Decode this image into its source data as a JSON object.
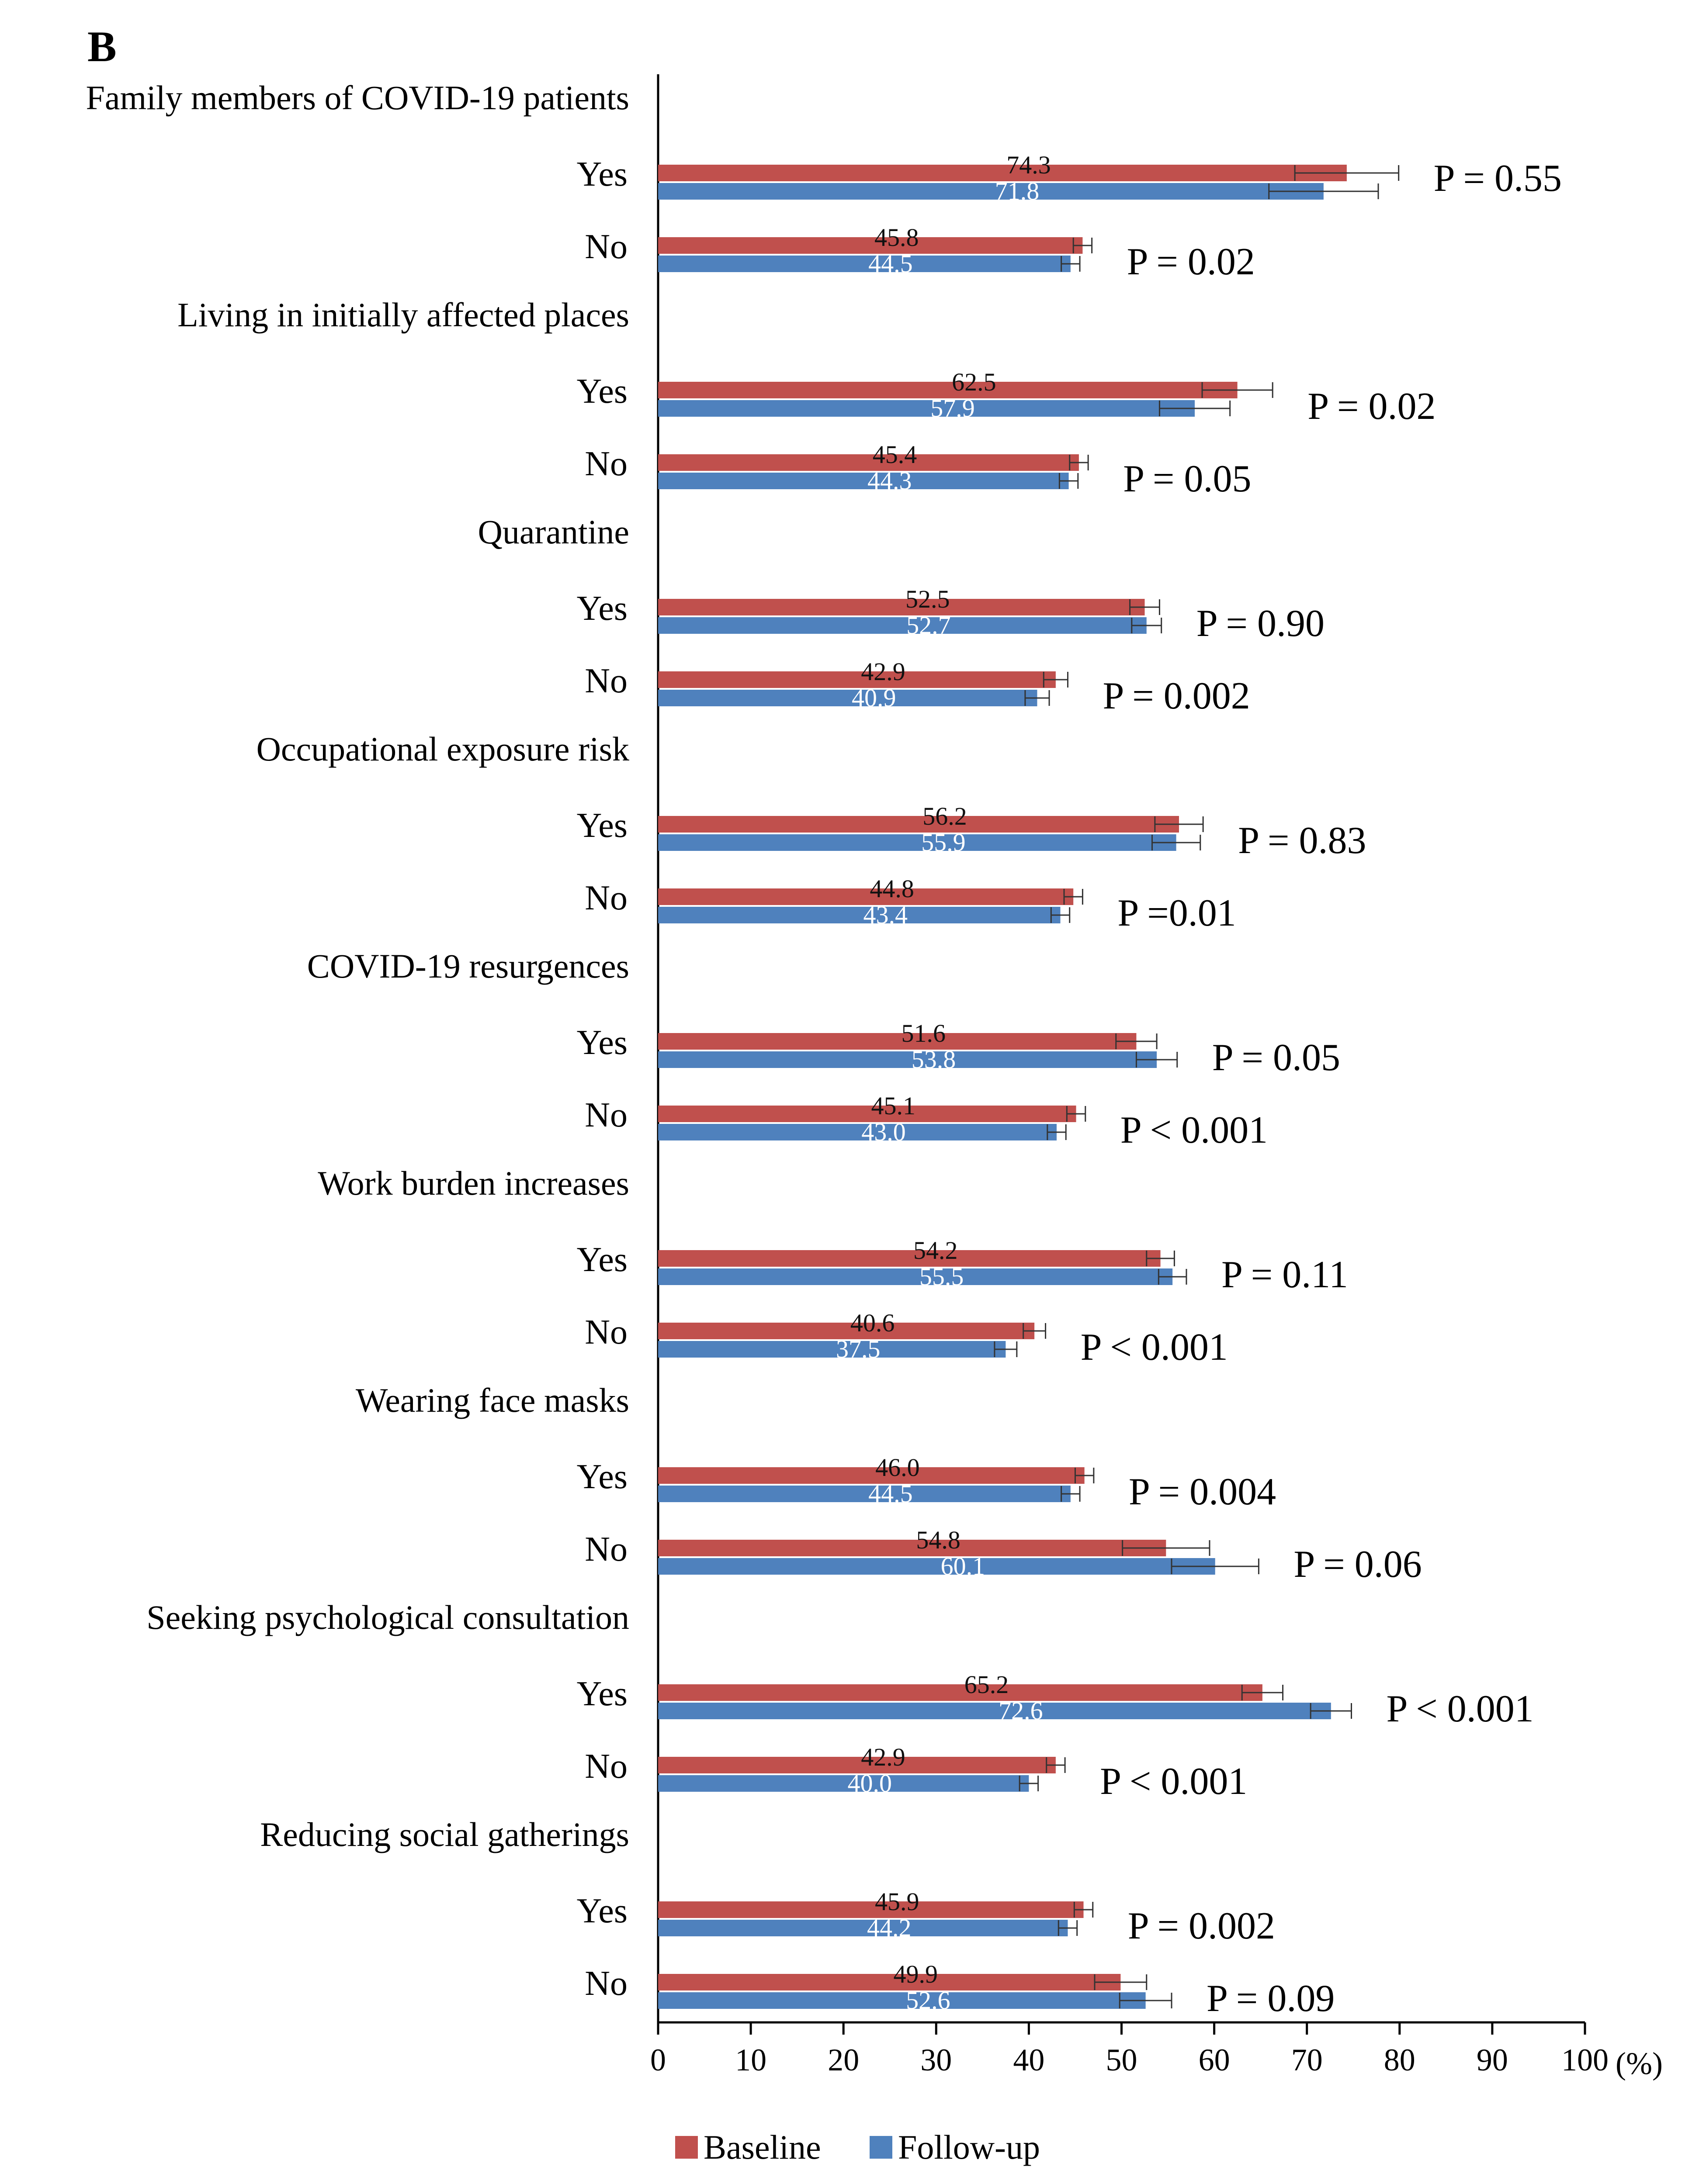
{
  "chart_data": {
    "type": "bar",
    "orientation": "horizontal",
    "panel_label": "B",
    "series": [
      {
        "name": "Baseline",
        "color": "#c0504d"
      },
      {
        "name": "Follow-up",
        "color": "#4f81bd"
      }
    ],
    "x_axis": {
      "min": 0,
      "max": 100,
      "ticks": [
        "0",
        "10",
        "20",
        "30",
        "40",
        "50",
        "60",
        "70",
        "80",
        "90",
        "100"
      ],
      "unit_label": "(%)"
    },
    "legend": {
      "position": "bottom",
      "items": [
        "Baseline",
        "Follow-up"
      ]
    },
    "groups": [
      {
        "title": "Family members of COVID-19 patients",
        "categories": [
          {
            "label": "Yes",
            "baseline": 74.3,
            "baseline_label": "74.3",
            "baseline_err": 5.6,
            "followup": 71.8,
            "followup_label": "71.8",
            "followup_err": 5.9,
            "p": "P = 0.55",
            "p_offset": 2
          },
          {
            "label": "No",
            "baseline": 45.8,
            "baseline_label": "45.8",
            "baseline_err": 1.0,
            "followup": 44.5,
            "followup_label": "44.5",
            "followup_err": 1.0,
            "p": "P = 0.02",
            "p_offset": 1
          }
        ]
      },
      {
        "title": "Living in initially affected places",
        "categories": [
          {
            "label": "Yes",
            "baseline": 62.5,
            "baseline_label": "62.5",
            "baseline_err": 3.8,
            "followup": 57.9,
            "followup_label": "57.9",
            "followup_err": 3.8,
            "p": "P = 0.02",
            "p_offset": 1
          },
          {
            "label": "No",
            "baseline": 45.4,
            "baseline_label": "45.4",
            "baseline_err": 1.0,
            "followup": 44.3,
            "followup_label": "44.3",
            "followup_err": 1.0,
            "p": "P = 0.05",
            "p_offset": 1
          }
        ]
      },
      {
        "title": "Quarantine",
        "categories": [
          {
            "label": "Yes",
            "baseline": 52.5,
            "baseline_label": "52.5",
            "baseline_err": 1.6,
            "followup": 52.7,
            "followup_label": "52.7",
            "followup_err": 1.6,
            "p": "P = 0.90",
            "p_offset": 1
          },
          {
            "label": "No",
            "baseline": 42.9,
            "baseline_label": "42.9",
            "baseline_err": 1.3,
            "followup": 40.9,
            "followup_label": "40.9",
            "followup_err": 1.3,
            "p": "P = 0.002",
            "p_offset": 1
          }
        ]
      },
      {
        "title": "Occupational exposure risk",
        "categories": [
          {
            "label": "Yes",
            "baseline": 56.2,
            "baseline_label": "56.2",
            "baseline_err": 2.6,
            "followup": 55.9,
            "followup_label": "55.9",
            "followup_err": 2.6,
            "p": "P = 0.83",
            "p_offset": 1
          },
          {
            "label": "No",
            "baseline": 44.8,
            "baseline_label": "44.8",
            "baseline_err": 1.0,
            "followup": 43.4,
            "followup_label": "43.4",
            "followup_err": 1.0,
            "p": "P =0.01",
            "p_offset": 1
          }
        ]
      },
      {
        "title": "COVID-19 resurgences",
        "categories": [
          {
            "label": "Yes",
            "baseline": 51.6,
            "baseline_label": "51.6",
            "baseline_err": 2.2,
            "followup": 53.8,
            "followup_label": "53.8",
            "followup_err": 2.2,
            "p": "P = 0.05",
            "p_offset": 1
          },
          {
            "label": "No",
            "baseline": 45.1,
            "baseline_label": "45.1",
            "baseline_err": 1.0,
            "followup": 43.0,
            "followup_label": "43.0",
            "followup_err": 1.0,
            "p": "P < 0.001",
            "p_offset": 1
          }
        ]
      },
      {
        "title": "Work burden increases",
        "categories": [
          {
            "label": "Yes",
            "baseline": 54.2,
            "baseline_label": "54.2",
            "baseline_err": 1.5,
            "followup": 55.5,
            "followup_label": "55.5",
            "followup_err": 1.5,
            "p": "P = 0.11",
            "p_offset": 1
          },
          {
            "label": "No",
            "baseline": 40.6,
            "baseline_label": "40.6",
            "baseline_err": 1.2,
            "followup": 37.5,
            "followup_label": "37.5",
            "followup_err": 1.2,
            "p": "P < 0.001",
            "p_offset": 1
          }
        ]
      },
      {
        "title": "Wearing face masks",
        "categories": [
          {
            "label": "Yes",
            "baseline": 46.0,
            "baseline_label": "46.0",
            "baseline_err": 1.0,
            "followup": 44.5,
            "followup_label": "44.5",
            "followup_err": 1.0,
            "p": "P = 0.004",
            "p_offset": 1
          },
          {
            "label": "No",
            "baseline": 54.8,
            "baseline_label": "54.8",
            "baseline_err": 4.7,
            "followup": 60.1,
            "followup_label": "60.1",
            "followup_err": 4.7,
            "p": "P = 0.06",
            "p_offset": 1
          }
        ]
      },
      {
        "title": "Seeking psychological consultation",
        "categories": [
          {
            "label": "Yes",
            "baseline": 65.2,
            "baseline_label": "65.2",
            "baseline_err": 2.2,
            "followup": 72.6,
            "followup_label": "72.6",
            "followup_err": 2.2,
            "p": "P < 0.001",
            "p_offset": 1
          },
          {
            "label": "No",
            "baseline": 42.9,
            "baseline_label": "42.9",
            "baseline_err": 1.0,
            "followup": 40.0,
            "followup_label": "40.0",
            "followup_err": 1.0,
            "p": "P < 0.001",
            "p_offset": 1
          }
        ]
      },
      {
        "title": "Reducing social gatherings",
        "categories": [
          {
            "label": "Yes",
            "baseline": 45.9,
            "baseline_label": "45.9",
            "baseline_err": 1.0,
            "followup": 44.2,
            "followup_label": "44.2",
            "followup_err": 1.0,
            "p": "P = 0.002",
            "p_offset": 1
          },
          {
            "label": "No",
            "baseline": 49.9,
            "baseline_label": "49.9",
            "baseline_err": 2.8,
            "followup": 52.6,
            "followup_label": "52.6",
            "followup_err": 2.8,
            "p": "P = 0.09",
            "p_offset": 1
          }
        ]
      }
    ]
  }
}
